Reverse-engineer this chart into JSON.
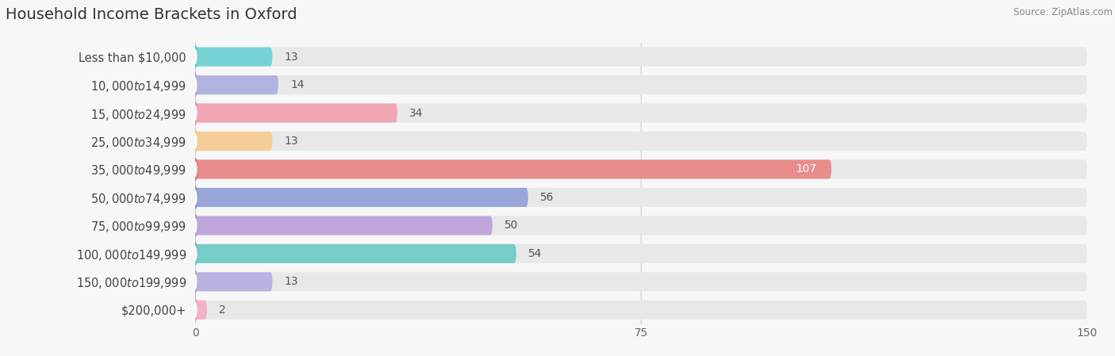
{
  "title": "Household Income Brackets in Oxford",
  "source": "Source: ZipAtlas.com",
  "categories": [
    "Less than $10,000",
    "$10,000 to $14,999",
    "$15,000 to $24,999",
    "$25,000 to $34,999",
    "$35,000 to $49,999",
    "$50,000 to $74,999",
    "$75,000 to $99,999",
    "$100,000 to $149,999",
    "$150,000 to $199,999",
    "$200,000+"
  ],
  "values": [
    13,
    14,
    34,
    13,
    107,
    56,
    50,
    54,
    13,
    2
  ],
  "bar_colors": [
    "#5ecfcf",
    "#a8a8e0",
    "#f598a8",
    "#f8c888",
    "#e87878",
    "#8898d8",
    "#b898d8",
    "#5ec8c0",
    "#b0a8e0",
    "#f8a8c0"
  ],
  "xlim": [
    0,
    150
  ],
  "xticks": [
    0,
    75,
    150
  ],
  "background_color": "#f7f7f7",
  "bar_bg_color": "#e8e8e8",
  "title_fontsize": 14,
  "label_fontsize": 10.5,
  "value_fontsize": 10,
  "bar_height": 0.68,
  "value_107_color": "white"
}
